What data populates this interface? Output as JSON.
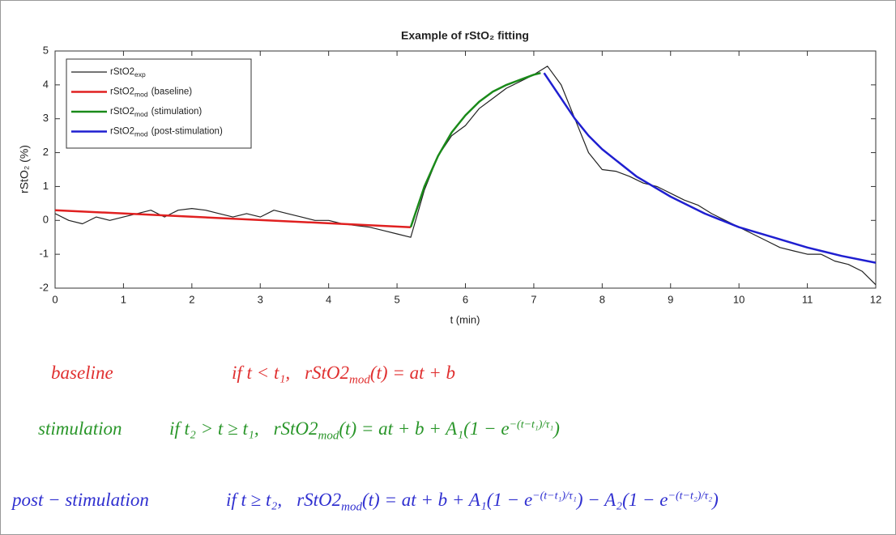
{
  "chart_data": {
    "type": "line",
    "title": "Example of rStO₂ fitting",
    "xlabel": "t (min)",
    "ylabel": "rStO₂ (%)",
    "xlim": [
      0,
      12
    ],
    "xticks": [
      0,
      1,
      2,
      3,
      4,
      5,
      6,
      7,
      8,
      9,
      10,
      11,
      12
    ],
    "ylim": [
      -2,
      5
    ],
    "yticks": [
      -2,
      -1,
      0,
      1,
      2,
      3,
      4,
      5
    ],
    "legend": "upper left",
    "x": [
      0,
      0.2,
      0.4,
      0.6,
      0.8,
      1,
      1.2,
      1.4,
      1.6,
      1.8,
      2,
      2.2,
      2.4,
      2.6,
      2.8,
      3,
      3.2,
      3.4,
      3.6,
      3.8,
      4,
      4.2,
      4.4,
      4.6,
      4.8,
      5,
      5.2,
      5.4,
      5.6,
      5.8,
      6,
      6.2,
      6.4,
      6.6,
      6.8,
      7,
      7.2,
      7.4,
      7.6,
      7.8,
      8,
      8.2,
      8.4,
      8.6,
      8.8,
      9,
      9.2,
      9.4,
      9.6,
      9.8,
      10,
      10.2,
      10.4,
      10.6,
      10.8,
      11,
      11.2,
      11.4,
      11.6,
      11.8,
      12
    ],
    "series": [
      {
        "name": "rStO2",
        "name_sub": "exp",
        "name_suffix": "",
        "color": "#222222",
        "width": 1.2,
        "values": [
          0.2,
          0.0,
          -0.1,
          0.1,
          0.0,
          0.1,
          0.2,
          0.3,
          0.1,
          0.3,
          0.35,
          0.3,
          0.2,
          0.1,
          0.2,
          0.1,
          0.3,
          0.2,
          0.1,
          0.0,
          0.0,
          -0.1,
          -0.15,
          -0.2,
          -0.3,
          -0.4,
          -0.5,
          0.9,
          1.9,
          2.5,
          2.8,
          3.3,
          3.6,
          3.9,
          4.1,
          4.3,
          4.55,
          4.0,
          3.0,
          2.0,
          1.5,
          1.45,
          1.3,
          1.1,
          1.0,
          0.8,
          0.6,
          0.45,
          0.2,
          0.0,
          -0.2,
          -0.4,
          -0.6,
          -0.8,
          -0.9,
          -1.0,
          -1.0,
          -1.2,
          -1.3,
          -1.5,
          -1.9
        ]
      },
      {
        "name": "rStO2",
        "name_sub": "mod",
        "name_suffix": "(baseline)",
        "color": "#e02020",
        "width": 2.5,
        "x": [
          0,
          5.2
        ],
        "values": [
          0.3,
          -0.2
        ]
      },
      {
        "name": "rStO2",
        "name_sub": "mod",
        "name_suffix": "(stimulation)",
        "color": "#1a8a1a",
        "width": 2.5,
        "x": [
          5.2,
          5.4,
          5.6,
          5.8,
          6.0,
          6.2,
          6.4,
          6.6,
          6.8,
          7.0,
          7.1
        ],
        "values": [
          -0.2,
          1.0,
          1.9,
          2.6,
          3.1,
          3.5,
          3.8,
          4.0,
          4.15,
          4.3,
          4.35
        ]
      },
      {
        "name": "rStO2",
        "name_sub": "mod",
        "name_suffix": "(post-stimulation)",
        "color": "#1f1fd0",
        "width": 2.5,
        "x": [
          7.15,
          7.4,
          7.6,
          7.8,
          8.0,
          8.5,
          9,
          9.5,
          10,
          10.5,
          11,
          11.5,
          12
        ],
        "values": [
          4.35,
          3.6,
          3.0,
          2.5,
          2.1,
          1.3,
          0.7,
          0.2,
          -0.2,
          -0.5,
          -0.8,
          -1.05,
          -1.25
        ]
      }
    ]
  },
  "equations": [
    {
      "label": "baseline",
      "color": "#e03030",
      "condition": "if t < t₁,",
      "lhs": "rStO2",
      "lhs_sub": "mod",
      "terms": [
        {
          "text": "(t) = at + b"
        }
      ]
    },
    {
      "label": "stimulation",
      "color": "#2a962a",
      "condition": "if t₂ > t ≥ t₁,",
      "lhs": "rStO2",
      "lhs_sub": "mod",
      "terms": [
        {
          "text": "(t) = at + b + A₁(1 − e",
          "sup": "−(t−t₁)/τ₁"
        },
        {
          "text": ")"
        }
      ]
    },
    {
      "label": "post − stimulation",
      "color": "#3030d0",
      "condition": "if t ≥ t₂,",
      "lhs": "rStO2",
      "lhs_sub": "mod",
      "terms": [
        {
          "text": "(t) = at + b + A₁(1 − e",
          "sup": "−(t−t₁)/τ₁"
        },
        {
          "text": ") − A₂(1 − e",
          "sup": "−(t−t₂)/τ₂"
        },
        {
          "text": ")"
        }
      ]
    }
  ]
}
